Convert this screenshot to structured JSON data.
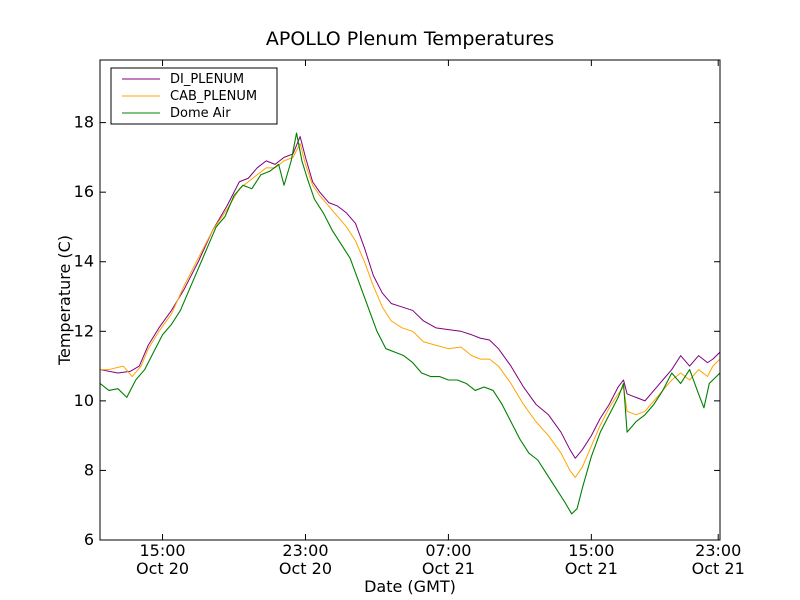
{
  "chart_data": {
    "type": "line",
    "title": "APOLLO Plenum Temperatures",
    "xlabel": "Date (GMT)",
    "ylabel": "Temperature (C)",
    "x_unit": "hours since Oct 20 00:00 GMT",
    "xlim": [
      11.5,
      46.2
    ],
    "ylim": [
      6,
      19.8
    ],
    "yticks": [
      6,
      8,
      10,
      12,
      14,
      16,
      18
    ],
    "xticks": [
      {
        "value": 15,
        "line1": "15:00",
        "line2": "Oct 20"
      },
      {
        "value": 23,
        "line1": "23:00",
        "line2": "Oct 20"
      },
      {
        "value": 31,
        "line1": "07:00",
        "line2": "Oct 21"
      },
      {
        "value": 39,
        "line1": "15:00",
        "line2": "Oct 21"
      },
      {
        "value": 47,
        "line1": "23:00",
        "line2": "Oct 21"
      }
    ],
    "xtick_display": [
      {
        "value": 15,
        "line1": "15:00",
        "line2": "Oct 20"
      },
      {
        "value": 23,
        "line1": "23:00",
        "line2": "Oct 20"
      },
      {
        "value": 31,
        "line1": "07:00",
        "line2": "Oct 21"
      },
      {
        "value": 39,
        "line1": "15:00",
        "line2": "Oct 21"
      },
      {
        "value": 46.1,
        "line1": "23:00",
        "line2": "Oct 21"
      }
    ],
    "legend_position": "top-left",
    "grid": false,
    "series": [
      {
        "name": "DI_PLENUM",
        "color": "#800080",
        "points": [
          [
            11.5,
            10.9
          ],
          [
            12.5,
            10.8
          ],
          [
            13.2,
            10.85
          ],
          [
            13.7,
            11.0
          ],
          [
            14.2,
            11.6
          ],
          [
            14.8,
            12.1
          ],
          [
            15.5,
            12.6
          ],
          [
            16.2,
            13.2
          ],
          [
            17.0,
            14.0
          ],
          [
            17.8,
            14.9
          ],
          [
            18.6,
            15.6
          ],
          [
            19.3,
            16.3
          ],
          [
            19.8,
            16.4
          ],
          [
            20.3,
            16.7
          ],
          [
            20.8,
            16.9
          ],
          [
            21.3,
            16.8
          ],
          [
            21.8,
            17.0
          ],
          [
            22.3,
            17.1
          ],
          [
            22.7,
            17.6
          ],
          [
            23.0,
            17.0
          ],
          [
            23.4,
            16.3
          ],
          [
            23.8,
            16.0
          ],
          [
            24.3,
            15.7
          ],
          [
            24.8,
            15.6
          ],
          [
            25.3,
            15.4
          ],
          [
            25.8,
            15.1
          ],
          [
            26.3,
            14.4
          ],
          [
            26.8,
            13.6
          ],
          [
            27.3,
            13.1
          ],
          [
            27.8,
            12.8
          ],
          [
            28.4,
            12.7
          ],
          [
            29.0,
            12.6
          ],
          [
            29.6,
            12.3
          ],
          [
            30.3,
            12.1
          ],
          [
            31.0,
            12.05
          ],
          [
            31.7,
            12.0
          ],
          [
            32.3,
            11.9
          ],
          [
            32.8,
            11.8
          ],
          [
            33.3,
            11.75
          ],
          [
            33.8,
            11.5
          ],
          [
            34.5,
            11.0
          ],
          [
            35.2,
            10.4
          ],
          [
            35.9,
            9.9
          ],
          [
            36.6,
            9.6
          ],
          [
            37.3,
            9.1
          ],
          [
            37.8,
            8.6
          ],
          [
            38.1,
            8.35
          ],
          [
            38.5,
            8.6
          ],
          [
            39.0,
            9.0
          ],
          [
            39.5,
            9.5
          ],
          [
            40.0,
            9.9
          ],
          [
            40.5,
            10.4
          ],
          [
            40.8,
            10.6
          ],
          [
            41.0,
            10.2
          ],
          [
            41.5,
            10.1
          ],
          [
            42.0,
            10.0
          ],
          [
            42.5,
            10.3
          ],
          [
            43.0,
            10.6
          ],
          [
            43.5,
            10.9
          ],
          [
            44.0,
            11.3
          ],
          [
            44.5,
            11.0
          ],
          [
            45.0,
            11.3
          ],
          [
            45.5,
            11.1
          ],
          [
            45.8,
            11.2
          ],
          [
            46.2,
            11.4
          ]
        ]
      },
      {
        "name": "CAB_PLENUM",
        "color": "#FFA500",
        "points": [
          [
            11.5,
            10.9
          ],
          [
            12.0,
            10.9
          ],
          [
            12.8,
            11.0
          ],
          [
            13.3,
            10.7
          ],
          [
            13.8,
            11.0
          ],
          [
            14.2,
            11.5
          ],
          [
            14.8,
            12.0
          ],
          [
            15.5,
            12.5
          ],
          [
            16.2,
            13.3
          ],
          [
            17.0,
            14.1
          ],
          [
            17.8,
            14.9
          ],
          [
            18.6,
            15.5
          ],
          [
            19.3,
            16.1
          ],
          [
            19.8,
            16.3
          ],
          [
            20.3,
            16.5
          ],
          [
            20.8,
            16.7
          ],
          [
            21.3,
            16.7
          ],
          [
            21.8,
            16.9
          ],
          [
            22.3,
            17.0
          ],
          [
            22.7,
            17.4
          ],
          [
            23.0,
            16.8
          ],
          [
            23.4,
            16.2
          ],
          [
            23.8,
            15.9
          ],
          [
            24.3,
            15.6
          ],
          [
            24.8,
            15.3
          ],
          [
            25.3,
            15.0
          ],
          [
            25.8,
            14.6
          ],
          [
            26.3,
            14.0
          ],
          [
            26.8,
            13.3
          ],
          [
            27.3,
            12.7
          ],
          [
            27.8,
            12.3
          ],
          [
            28.4,
            12.1
          ],
          [
            29.0,
            12.0
          ],
          [
            29.6,
            11.7
          ],
          [
            30.3,
            11.6
          ],
          [
            31.0,
            11.5
          ],
          [
            31.7,
            11.55
          ],
          [
            32.3,
            11.3
          ],
          [
            32.8,
            11.2
          ],
          [
            33.3,
            11.2
          ],
          [
            33.8,
            11.0
          ],
          [
            34.5,
            10.5
          ],
          [
            35.2,
            9.9
          ],
          [
            35.9,
            9.4
          ],
          [
            36.6,
            9.0
          ],
          [
            37.3,
            8.5
          ],
          [
            37.8,
            8.0
          ],
          [
            38.1,
            7.8
          ],
          [
            38.5,
            8.1
          ],
          [
            39.0,
            8.7
          ],
          [
            39.5,
            9.3
          ],
          [
            40.0,
            9.8
          ],
          [
            40.5,
            10.2
          ],
          [
            40.8,
            10.4
          ],
          [
            41.0,
            9.7
          ],
          [
            41.5,
            9.6
          ],
          [
            42.0,
            9.7
          ],
          [
            42.5,
            10.0
          ],
          [
            43.0,
            10.3
          ],
          [
            43.5,
            10.6
          ],
          [
            44.0,
            10.8
          ],
          [
            44.5,
            10.6
          ],
          [
            45.0,
            10.9
          ],
          [
            45.5,
            10.7
          ],
          [
            45.8,
            11.0
          ],
          [
            46.2,
            11.2
          ]
        ]
      },
      {
        "name": "Dome Air",
        "color": "#008000",
        "points": [
          [
            11.5,
            10.5
          ],
          [
            12.0,
            10.3
          ],
          [
            12.5,
            10.35
          ],
          [
            13.0,
            10.1
          ],
          [
            13.5,
            10.6
          ],
          [
            14.0,
            10.9
          ],
          [
            14.5,
            11.4
          ],
          [
            15.0,
            11.9
          ],
          [
            15.5,
            12.2
          ],
          [
            16.0,
            12.6
          ],
          [
            16.5,
            13.2
          ],
          [
            17.0,
            13.8
          ],
          [
            17.5,
            14.4
          ],
          [
            18.0,
            15.0
          ],
          [
            18.5,
            15.3
          ],
          [
            19.0,
            15.9
          ],
          [
            19.5,
            16.2
          ],
          [
            20.0,
            16.1
          ],
          [
            20.5,
            16.5
          ],
          [
            21.0,
            16.6
          ],
          [
            21.5,
            16.8
          ],
          [
            21.8,
            16.2
          ],
          [
            22.2,
            16.9
          ],
          [
            22.5,
            17.7
          ],
          [
            22.8,
            16.9
          ],
          [
            23.1,
            16.4
          ],
          [
            23.5,
            15.8
          ],
          [
            24.0,
            15.4
          ],
          [
            24.5,
            14.9
          ],
          [
            25.0,
            14.5
          ],
          [
            25.5,
            14.1
          ],
          [
            26.0,
            13.4
          ],
          [
            26.5,
            12.7
          ],
          [
            27.0,
            12.0
          ],
          [
            27.5,
            11.5
          ],
          [
            28.0,
            11.4
          ],
          [
            28.5,
            11.3
          ],
          [
            29.0,
            11.1
          ],
          [
            29.5,
            10.8
          ],
          [
            30.0,
            10.7
          ],
          [
            30.5,
            10.7
          ],
          [
            31.0,
            10.6
          ],
          [
            31.5,
            10.6
          ],
          [
            32.0,
            10.5
          ],
          [
            32.5,
            10.3
          ],
          [
            33.0,
            10.4
          ],
          [
            33.5,
            10.3
          ],
          [
            34.0,
            9.9
          ],
          [
            34.5,
            9.4
          ],
          [
            35.0,
            8.9
          ],
          [
            35.5,
            8.5
          ],
          [
            36.0,
            8.3
          ],
          [
            36.5,
            7.9
          ],
          [
            37.0,
            7.5
          ],
          [
            37.5,
            7.1
          ],
          [
            37.9,
            6.75
          ],
          [
            38.2,
            6.9
          ],
          [
            38.5,
            7.5
          ],
          [
            39.0,
            8.4
          ],
          [
            39.5,
            9.1
          ],
          [
            40.0,
            9.6
          ],
          [
            40.5,
            10.1
          ],
          [
            40.8,
            10.5
          ],
          [
            41.0,
            9.1
          ],
          [
            41.5,
            9.4
          ],
          [
            42.0,
            9.6
          ],
          [
            42.5,
            9.9
          ],
          [
            43.0,
            10.3
          ],
          [
            43.5,
            10.8
          ],
          [
            44.0,
            10.5
          ],
          [
            44.5,
            10.9
          ],
          [
            45.0,
            10.2
          ],
          [
            45.3,
            9.8
          ],
          [
            45.6,
            10.5
          ],
          [
            46.2,
            10.8
          ]
        ]
      }
    ]
  }
}
